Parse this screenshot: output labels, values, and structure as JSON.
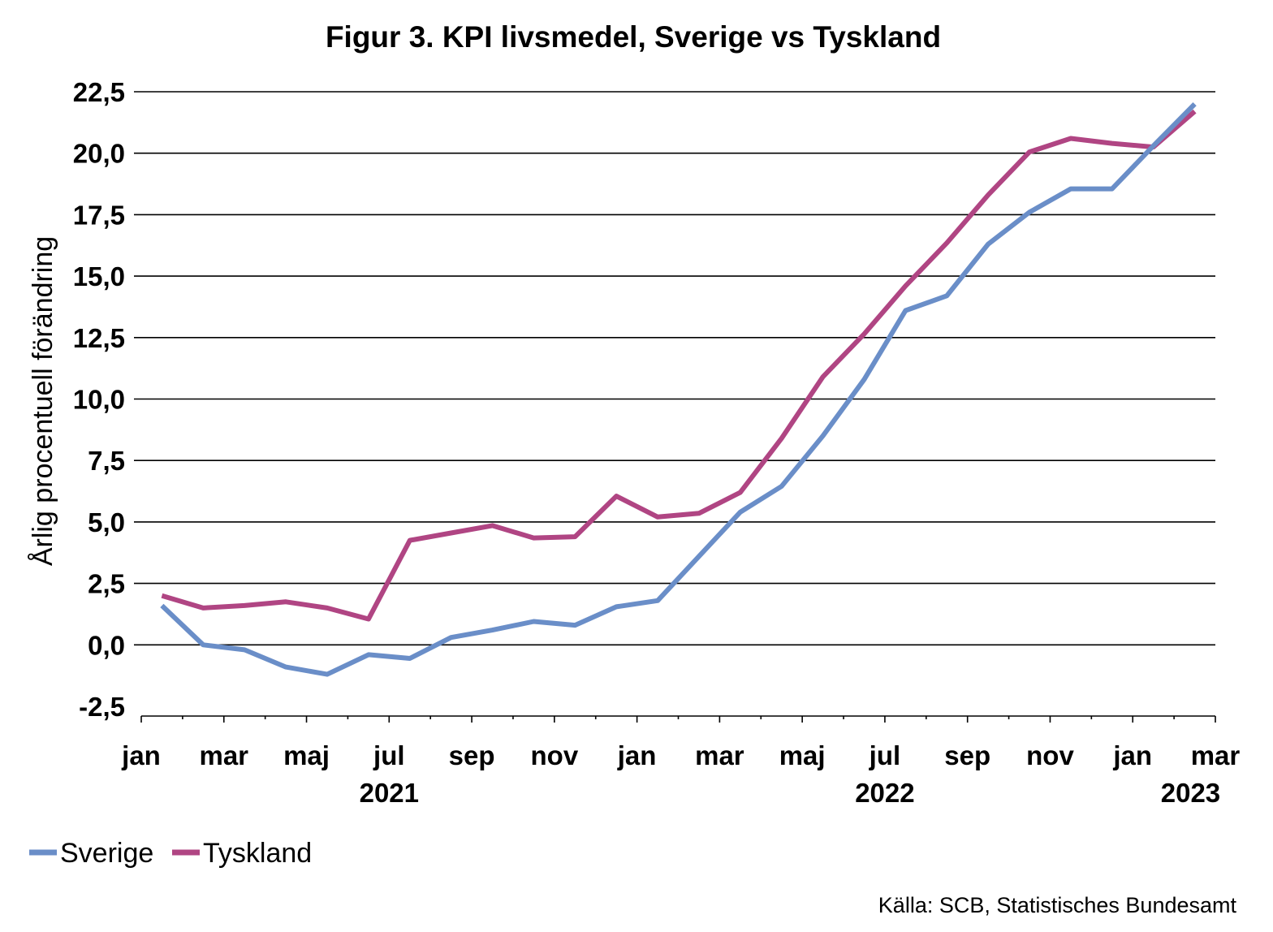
{
  "chart_data": {
    "type": "line",
    "title": "Figur 3. KPI livsmedel, Sverige vs Tyskland",
    "ylabel": "Årlig procentuell förändring",
    "xlabel": "",
    "ylim": [
      -2.5,
      22.5
    ],
    "yticks": [
      "22,5",
      "20,0",
      "17,5",
      "15,0",
      "12,5",
      "10,0",
      "7,5",
      "5,0",
      "2,5",
      "0,0",
      "-2,5"
    ],
    "ytick_values": [
      22.5,
      20.0,
      17.5,
      15.0,
      12.5,
      10.0,
      7.5,
      5.0,
      2.5,
      0.0,
      -2.5
    ],
    "grid": true,
    "xtick_labels": [
      "jan",
      "mar",
      "maj",
      "jul",
      "sep",
      "nov",
      "jan",
      "mar",
      "maj",
      "jul",
      "sep",
      "nov",
      "jan",
      "mar"
    ],
    "year_labels": [
      "2021",
      "2022",
      "2023"
    ],
    "x": [
      "2021-01",
      "2021-02",
      "2021-03",
      "2021-04",
      "2021-05",
      "2021-06",
      "2021-07",
      "2021-08",
      "2021-09",
      "2021-10",
      "2021-11",
      "2021-12",
      "2022-01",
      "2022-02",
      "2022-03",
      "2022-04",
      "2022-05",
      "2022-06",
      "2022-07",
      "2022-08",
      "2022-09",
      "2022-10",
      "2022-11",
      "2022-12",
      "2023-01",
      "2023-02"
    ],
    "series": [
      {
        "name": "Sverige",
        "color": "#6a8ec8",
        "values": [
          1.6,
          0.0,
          -0.2,
          -0.9,
          -1.2,
          -0.4,
          -0.55,
          0.3,
          0.6,
          0.95,
          0.8,
          1.55,
          1.8,
          3.6,
          5.4,
          6.45,
          8.5,
          10.8,
          13.6,
          14.2,
          16.3,
          17.6,
          18.55,
          18.55,
          20.3,
          22.0
        ]
      },
      {
        "name": "Tyskland",
        "color": "#b04583",
        "values": [
          2.0,
          1.5,
          1.6,
          1.75,
          1.5,
          1.05,
          4.25,
          4.55,
          4.85,
          4.35,
          4.4,
          6.05,
          5.2,
          5.35,
          6.2,
          8.4,
          10.9,
          12.65,
          14.6,
          16.35,
          18.3,
          20.05,
          20.6,
          20.4,
          20.25,
          21.7
        ]
      }
    ],
    "legend": "bottom-left",
    "source": "Källa: SCB, Statistisches Bundesamt"
  }
}
